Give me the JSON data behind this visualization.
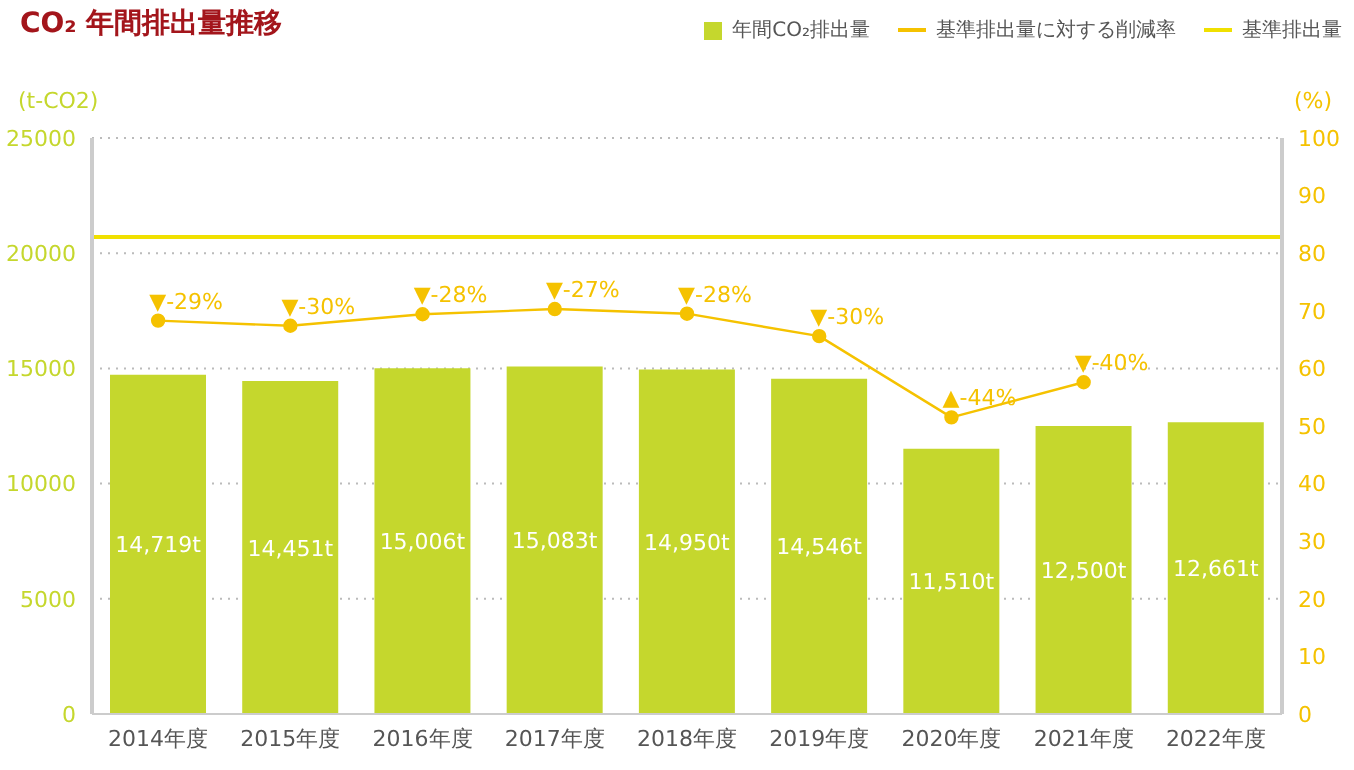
{
  "chart_data": {
    "type": "bar",
    "title": "CO₂ 年間排出量推移",
    "categories": [
      "2014年度",
      "2015年度",
      "2016年度",
      "2017年度",
      "2018年度",
      "2019年度",
      "2020年度",
      "2021年度",
      "2022年度"
    ],
    "series": [
      {
        "name": "年間CO₂排出量",
        "color": "#c5d72d",
        "values": [
          14719,
          14451,
          15006,
          15083,
          14950,
          14546,
          11510,
          12500,
          12661
        ],
        "value_labels": [
          "14,719t",
          "14,451t",
          "15,006t",
          "15,083t",
          "14,950t",
          "14,546t",
          "11,510t",
          "12,500t",
          "12,661t"
        ]
      },
      {
        "name": "基準排出量に対する削減率",
        "type": "line",
        "axis": "y2",
        "color": "#f5c200",
        "marker": "circle",
        "values": [
          68.3,
          67.4,
          69.4,
          70.3,
          69.5,
          65.6,
          51.5,
          57.6,
          null
        ]
      }
    ],
    "annotations": [
      {
        "text": "▼-29%",
        "x": "2014年度",
        "y": 17075
      },
      {
        "text": "▼-30%",
        "x": "2015年度",
        "y": 16850
      },
      {
        "text": "▼-28%",
        "x": "2016年度",
        "y": 17350
      },
      {
        "text": "▼-27%",
        "x": "2017年度",
        "y": 17575
      },
      {
        "text": "▼-28%",
        "x": "2018年度",
        "y": 17375
      },
      {
        "text": "▼-30%",
        "x": "2019年度",
        "y": 16400
      },
      {
        "text": "▲-44%",
        "x": "2020年度",
        "y": 12875
      },
      {
        "text": "▼-40%",
        "x": "2021年度",
        "y": 14400
      }
    ],
    "ref_lines": [
      {
        "axis": "y",
        "value": 20700,
        "label": "基準排出量",
        "color": "#f0e000"
      }
    ],
    "ylabel": "(t-CO2)",
    "y2label": "(%)",
    "ylim": [
      0,
      25000
    ],
    "yticks": [
      0,
      5000,
      10000,
      15000,
      20000,
      25000
    ],
    "y2lim": [
      0,
      100
    ],
    "y2ticks": [
      0,
      10,
      20,
      30,
      40,
      50,
      60,
      70,
      80,
      90,
      100
    ],
    "grid": "y",
    "legend": "top right"
  }
}
